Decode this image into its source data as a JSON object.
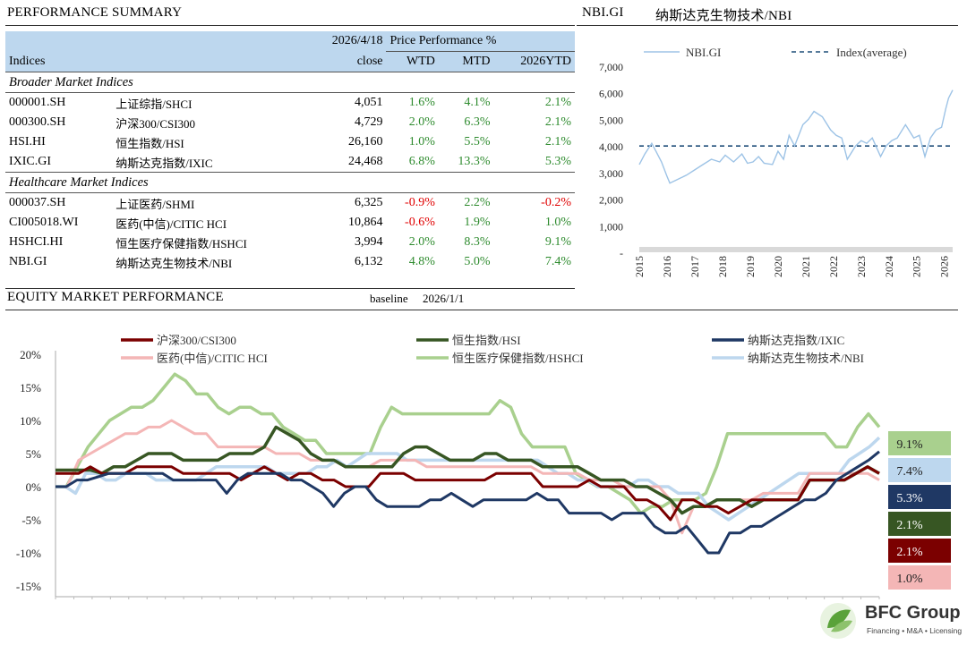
{
  "summary": {
    "title": "PERFORMANCE SUMMARY",
    "date": "2026/4/18",
    "price_perf": "Price Performance %",
    "col_indices": "Indices",
    "col_close": "close",
    "col_wtd": "WTD",
    "col_mtd": "MTD",
    "col_ytd": "2026YTD",
    "sections": [
      {
        "label": "Broader Market Indices",
        "rows": [
          {
            "code": "000001.SH",
            "name": "上证综指/SHCI",
            "close": "4,051",
            "wtd": "1.6%",
            "mtd": "4.1%",
            "ytd": "2.1%"
          },
          {
            "code": "000300.SH",
            "name": "沪深300/CSI300",
            "close": "4,729",
            "wtd": "2.0%",
            "mtd": "6.3%",
            "ytd": "2.1%"
          },
          {
            "code": "HSI.HI",
            "name": "恒生指数/HSI",
            "close": "26,160",
            "wtd": "1.0%",
            "mtd": "5.5%",
            "ytd": "2.1%"
          },
          {
            "code": "IXIC.GI",
            "name": "纳斯达克指数/IXIC",
            "close": "24,468",
            "wtd": "6.8%",
            "mtd": "13.3%",
            "ytd": "5.3%"
          }
        ]
      },
      {
        "label": "Healthcare Market Indices",
        "rows": [
          {
            "code": "000037.SH",
            "name": "上证医药/SHMI",
            "close": "6,325",
            "wtd": "-0.9%",
            "mtd": "2.2%",
            "ytd": "-0.2%"
          },
          {
            "code": "CI005018.WI",
            "name": "医药(中信)/CITIC HCI",
            "close": "10,864",
            "wtd": "-0.6%",
            "mtd": "1.9%",
            "ytd": "1.0%"
          },
          {
            "code": "HSHCI.HI",
            "name": "恒生医疗保健指数/HSHCI",
            "close": "3,994",
            "wtd": "2.0%",
            "mtd": "8.3%",
            "ytd": "9.1%"
          },
          {
            "code": "NBI.GI",
            "name": "纳斯达克生物技术/NBI",
            "close": "6,132",
            "wtd": "4.8%",
            "mtd": "5.0%",
            "ytd": "7.4%"
          }
        ]
      }
    ]
  },
  "nbi_header": {
    "code": "NBI.GI",
    "name": "纳斯达克生物技术/NBI"
  },
  "equity_header": {
    "title": "EQUITY MARKET PERFORMANCE",
    "baseline_label": "baseline",
    "baseline_date": "2026/1/1"
  },
  "logo": {
    "name": "BFC Group",
    "tagline": "Financing • M&A • Licensing"
  },
  "colors": {
    "csi300": "#7b0000",
    "hsi": "#375623",
    "ixic": "#1f3864",
    "citic": "#f4b6b6",
    "hshci": "#a9d08e",
    "nbi": "#bdd7ee",
    "header_bg": "#bdd7ee",
    "gray_band": "#d9d9d9"
  },
  "chart_data": [
    {
      "type": "line",
      "title": "NBI.GI 纳斯达克生物技术/NBI",
      "legend": [
        "NBI.GI",
        "Index(average)"
      ],
      "ylim": [
        0,
        7000
      ],
      "yticks": [
        0,
        1000,
        2000,
        3000,
        4000,
        5000,
        6000,
        7000
      ],
      "ytick_labels": [
        "-",
        "1,000",
        "2,000",
        "3,000",
        "4,000",
        "5,000",
        "6,000",
        "7,000"
      ],
      "xlim": [
        2015,
        2026.3
      ],
      "xtick_labels": [
        "2015",
        "2016",
        "2017",
        "2018",
        "2019",
        "2020",
        "2021",
        "2022",
        "2023",
        "2024",
        "2025",
        "2026"
      ],
      "average": 4000,
      "series": [
        {
          "name": "NBI.GI",
          "x": [
            2015,
            2015.2,
            2015.45,
            2015.6,
            2015.8,
            2016,
            2016.1,
            2016.3,
            2016.5,
            2016.7,
            2017,
            2017.3,
            2017.6,
            2017.9,
            2018.1,
            2018.4,
            2018.7,
            2018.9,
            2019.1,
            2019.3,
            2019.5,
            2019.8,
            2020,
            2020.2,
            2020.4,
            2020.6,
            2020.9,
            2021.1,
            2021.3,
            2021.6,
            2021.9,
            2022.1,
            2022.3,
            2022.5,
            2022.8,
            2023,
            2023.2,
            2023.4,
            2023.7,
            2023.9,
            2024.1,
            2024.3,
            2024.6,
            2024.9,
            2025.1,
            2025.3,
            2025.5,
            2025.7,
            2025.9,
            2026.05,
            2026.15,
            2026.3
          ],
          "values": [
            3300,
            3700,
            4100,
            3800,
            3400,
            2850,
            2600,
            2700,
            2800,
            2900,
            3100,
            3300,
            3500,
            3400,
            3650,
            3400,
            3700,
            3350,
            3400,
            3600,
            3350,
            3300,
            3800,
            3500,
            4400,
            4000,
            4800,
            5000,
            5300,
            5100,
            4600,
            4400,
            4300,
            3500,
            4000,
            4200,
            4100,
            4300,
            3600,
            4000,
            4200,
            4300,
            4800,
            4300,
            4400,
            3600,
            4300,
            4600,
            4700,
            5400,
            5800,
            6100
          ]
        },
        {
          "name": "Index(average)",
          "x": [
            2015,
            2026.3
          ],
          "values": [
            4000,
            4000
          ]
        }
      ]
    },
    {
      "type": "line",
      "title": "EQUITY MARKET PERFORMANCE",
      "ylim": [
        -15,
        20
      ],
      "yticks": [
        -15,
        -10,
        -5,
        0,
        5,
        10,
        15,
        20
      ],
      "ytick_labels": [
        "-15%",
        "-10%",
        "-5%",
        "0%",
        "5%",
        "10%",
        "15%",
        "20%"
      ],
      "legend": [
        "沪深300/CSI300",
        "恒生指数/HSI",
        "纳斯达克指数/IXIC",
        "医药(中信)/CITIC HCI",
        "恒生医疗保健指数/HSHCI",
        "纳斯达克生物技术/NBI"
      ],
      "end_labels": [
        "9.1%",
        "7.4%",
        "5.3%",
        "2.1%",
        "2.1%",
        "1.0%"
      ],
      "series": [
        {
          "name": "沪深300/CSI300",
          "values": [
            2,
            2,
            2,
            3,
            2,
            2,
            2,
            3,
            3,
            3,
            3,
            2,
            2,
            2,
            2,
            2,
            1,
            2,
            3,
            2,
            1,
            2,
            2,
            1,
            1,
            0,
            0,
            0,
            2,
            2,
            2,
            1,
            1,
            1,
            1,
            1,
            1,
            1,
            2,
            2,
            2,
            2,
            0,
            0,
            0,
            0,
            1,
            0,
            0,
            0,
            -2,
            -2,
            -3,
            -5,
            -2,
            -2,
            -3,
            -3,
            -4,
            -3,
            -2,
            -2,
            -2,
            -2,
            -2,
            1,
            1,
            1,
            1,
            2,
            3,
            2
          ]
        },
        {
          "name": "恒生指数/HSI",
          "values": [
            2.5,
            2.5,
            2.5,
            2.5,
            2,
            3,
            3,
            4,
            5,
            5,
            5,
            4,
            4,
            4,
            4,
            5,
            5,
            5,
            6,
            9,
            8,
            7,
            5,
            4,
            4,
            3,
            3,
            3,
            3,
            3,
            5,
            6,
            6,
            5,
            4,
            4,
            4,
            5,
            5,
            4,
            4,
            4,
            3,
            3,
            3,
            3,
            2,
            1,
            1,
            1,
            0,
            0,
            -1,
            -2,
            -4,
            -3,
            -3,
            -2,
            -2,
            -2,
            -3,
            -2,
            -2,
            -2,
            -2,
            1,
            1,
            1,
            1,
            2,
            3,
            2
          ]
        },
        {
          "name": "纳斯达克指数/IXIC",
          "values": [
            0,
            0,
            1,
            1,
            1.5,
            2,
            2,
            2,
            2,
            2,
            2,
            1,
            1,
            1,
            1,
            1,
            -1,
            1,
            2,
            2,
            2,
            2,
            1,
            1,
            0,
            -1,
            -3,
            -1,
            0,
            0,
            -2,
            -3,
            -3,
            -3,
            -3,
            -2,
            -2,
            -1,
            -2,
            -3,
            -2,
            -2,
            -2,
            -2,
            -2,
            -1,
            -2,
            -2,
            -4,
            -4,
            -4,
            -4,
            -5,
            -4,
            -4,
            -4,
            -6,
            -7,
            -7,
            -6,
            -8,
            -10,
            -10,
            -7,
            -7,
            -6,
            -6,
            -5,
            -4,
            -3,
            -2,
            -2,
            -1,
            1,
            2,
            3,
            4,
            5.3
          ]
        },
        {
          "name": "医药(中信)/CITIC HCI",
          "values": [
            0,
            0,
            4,
            5,
            6,
            7,
            8,
            8,
            9,
            9,
            10,
            9,
            8,
            8,
            6,
            6,
            6,
            6,
            6,
            5,
            5,
            5,
            4,
            4,
            4,
            3,
            3,
            3,
            4,
            4,
            4,
            4,
            3,
            3,
            3,
            3,
            3,
            3,
            3,
            3,
            3,
            3,
            2,
            2,
            2,
            2,
            1,
            1,
            1,
            0,
            0,
            0,
            0,
            -2,
            -7,
            -3,
            -3,
            -2,
            -2,
            -2,
            -2,
            -1,
            -1,
            -1,
            -1,
            2,
            2,
            2,
            2,
            2,
            2,
            1
          ]
        },
        {
          "name": "恒生医疗保健指数/HSHCI",
          "values": [
            0,
            0,
            3,
            6,
            8,
            10,
            11,
            12,
            12,
            13,
            15,
            17,
            16,
            14,
            14,
            12,
            11,
            12,
            12,
            11,
            11,
            9,
            8,
            7,
            7,
            5,
            5,
            5,
            5,
            5,
            9,
            12,
            11,
            11,
            11,
            11,
            11,
            11,
            11,
            11,
            11,
            13,
            12,
            8,
            6,
            6,
            6,
            6,
            2,
            1,
            0,
            0,
            -1,
            -2,
            -4,
            -3,
            -3,
            -2,
            -2,
            -2,
            -1,
            3,
            8,
            8,
            8,
            8,
            8,
            8,
            8,
            8,
            8,
            8,
            6,
            6,
            9,
            11,
            9
          ]
        },
        {
          "name": "纳斯达克生物技术/NBI",
          "values": [
            0,
            0,
            -1,
            2,
            2,
            1,
            1,
            2,
            2,
            2,
            1,
            1,
            1,
            1,
            1,
            2,
            3,
            3,
            3,
            3,
            3,
            3,
            2,
            2,
            2,
            2,
            3,
            3,
            4,
            3,
            4,
            5,
            5,
            5,
            5,
            4,
            4,
            4,
            4,
            4,
            4,
            4,
            4,
            4,
            4,
            4,
            4,
            4,
            4,
            3,
            2,
            2,
            1,
            1,
            0,
            0,
            0,
            0,
            1,
            1,
            0,
            0,
            -1,
            -1,
            -1,
            -3,
            -4,
            -5,
            -4,
            -3,
            -2,
            -1,
            0,
            1,
            2,
            2,
            2,
            2,
            2,
            4,
            5,
            6,
            7.4
          ]
        }
      ]
    }
  ]
}
